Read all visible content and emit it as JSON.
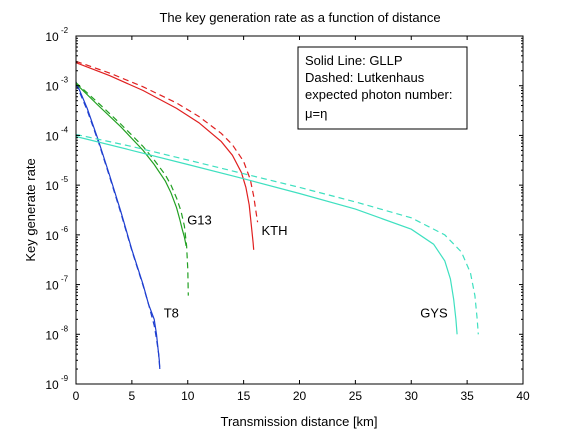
{
  "chart_data": {
    "type": "line",
    "title": "The key generation rate as a function of distance",
    "xlabel": "Transmission distance [km]",
    "ylabel": "Key generate rate",
    "xlim": [
      0,
      40
    ],
    "ylim": [
      1e-09,
      0.01
    ],
    "yscale": "log",
    "grid": false,
    "x_ticks": [
      "0",
      "5",
      "10",
      "15",
      "20",
      "25",
      "30",
      "35",
      "40"
    ],
    "y_ticks": [
      {
        "base": "10",
        "exp": "-9"
      },
      {
        "base": "10",
        "exp": "-8"
      },
      {
        "base": "10",
        "exp": "-7"
      },
      {
        "base": "10",
        "exp": "-6"
      },
      {
        "base": "10",
        "exp": "-5"
      },
      {
        "base": "10",
        "exp": "-4"
      },
      {
        "base": "10",
        "exp": "-3"
      },
      {
        "base": "10",
        "exp": "-2"
      }
    ],
    "annotation_box": {
      "lines": [
        "Solid Line: GLLP",
        "Dashed: Lutkenhaus",
        "expected photon number:",
        "μ=η"
      ]
    },
    "series": [
      {
        "name": "T8",
        "color": "#1f3fd0",
        "style": "solid",
        "x": [
          0,
          1,
          2,
          3,
          4,
          5,
          6,
          6.5,
          7,
          7.2,
          7.35,
          7.45,
          7.5
        ],
        "y": [
          0.0012,
          0.00035,
          8e-05,
          1.6e-05,
          3e-06,
          5e-07,
          1e-07,
          4e-08,
          2e-08,
          1e-08,
          5e-09,
          3e-09,
          2e-09
        ]
      },
      {
        "name": "T8",
        "color": "#1f3fd0",
        "style": "dashed",
        "x": [
          0,
          1,
          2,
          3,
          4,
          5,
          6,
          6.5,
          7,
          7.2,
          7.4,
          7.5
        ],
        "y": [
          0.0011,
          0.00032,
          7.5e-05,
          1.5e-05,
          2.8e-06,
          4.8e-07,
          9.5e-08,
          4e-08,
          1.5e-08,
          8e-09,
          4e-09,
          2e-09
        ]
      },
      {
        "name": "G13",
        "color": "#22a022",
        "style": "solid",
        "x": [
          0,
          2,
          4,
          6,
          7,
          8,
          8.5,
          9,
          9.3,
          9.5,
          9.7,
          9.8,
          9.85
        ],
        "y": [
          0.0011,
          0.0004,
          0.00015,
          5e-05,
          2.6e-05,
          1.2e-05,
          7e-06,
          3.5e-06,
          2e-06,
          1.3e-06,
          9e-07,
          7e-07,
          6e-07
        ]
      },
      {
        "name": "G13",
        "color": "#22a022",
        "style": "dashed",
        "x": [
          0,
          2,
          4,
          6,
          7,
          8,
          8.5,
          9,
          9.4,
          9.7,
          9.9,
          10.0,
          10.05
        ],
        "y": [
          0.00115,
          0.00045,
          0.00017,
          6e-05,
          3.2e-05,
          1.6e-05,
          1e-05,
          5.5e-06,
          3e-06,
          1.5e-06,
          6e-07,
          2e-07,
          6e-08
        ]
      },
      {
        "name": "KTH",
        "color": "#e02020",
        "style": "solid",
        "x": [
          0,
          3,
          6,
          9,
          11,
          13,
          14,
          14.8,
          15.2,
          15.5,
          15.7,
          15.85,
          15.9
        ],
        "y": [
          0.0029,
          0.0016,
          0.0008,
          0.00035,
          0.00018,
          7.5e-05,
          4e-05,
          1.8e-05,
          9e-06,
          4e-06,
          1.5e-06,
          7e-07,
          5e-07
        ]
      },
      {
        "name": "KTH",
        "color": "#e02020",
        "style": "dashed",
        "x": [
          0,
          3,
          6,
          9,
          11,
          13,
          14,
          15,
          15.6,
          15.9,
          16.1,
          16.25
        ],
        "y": [
          0.0031,
          0.0018,
          0.00095,
          0.00045,
          0.00024,
          0.00011,
          6.5e-05,
          3e-05,
          1.3e-05,
          6e-06,
          3e-06,
          1.8e-06
        ]
      },
      {
        "name": "GYS",
        "color": "#3fe0c0",
        "style": "solid",
        "x": [
          0,
          5,
          10,
          15,
          20,
          25,
          30,
          32,
          33,
          33.5,
          33.8,
          34.0,
          34.1
        ],
        "y": [
          9.5e-05,
          5e-05,
          2.6e-05,
          1.35e-05,
          6.8e-06,
          3.3e-06,
          1.3e-06,
          6.5e-07,
          3e-07,
          1.3e-07,
          5e-08,
          2e-08,
          1e-08
        ]
      },
      {
        "name": "GYS",
        "color": "#3fe0c0",
        "style": "dashed",
        "x": [
          0,
          5,
          10,
          15,
          20,
          25,
          30,
          33,
          34.5,
          35.3,
          35.7,
          35.9,
          36.0
        ],
        "y": [
          0.000105,
          6e-05,
          3.2e-05,
          1.7e-05,
          9e-06,
          4.6e-06,
          2.2e-06,
          1e-06,
          4.5e-07,
          1.7e-07,
          6e-08,
          2e-08,
          1e-08
        ]
      }
    ],
    "labels": [
      {
        "text": "T8",
        "x": 7.85,
        "y": 2.2e-08
      },
      {
        "text": "G13",
        "x": 9.95,
        "y": 1.6e-06
      },
      {
        "text": "KTH",
        "x": 16.6,
        "y": 1e-06
      },
      {
        "text": "GYS",
        "x": 30.8,
        "y": 2.2e-08
      }
    ]
  }
}
